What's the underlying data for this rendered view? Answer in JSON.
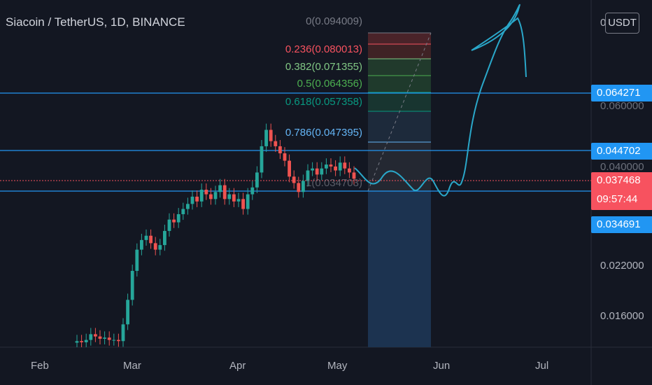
{
  "header": {
    "symbol_title": "Siacoin / TetherUS, 1D, BINANCE"
  },
  "price_axis": {
    "currency_button": "USDT",
    "top_tick": "0",
    "ticks": [
      "0.022000",
      "0.016000"
    ],
    "partially_hidden_ticks": [
      "0.060000",
      "0.040000"
    ]
  },
  "time_axis": {
    "labels": [
      "Feb",
      "Mar",
      "Apr",
      "May",
      "Jun",
      "Jul"
    ]
  },
  "horizontal_levels": [
    {
      "value": "0.064271",
      "color": "#2196f3"
    },
    {
      "value": "0.044702",
      "color": "#2196f3"
    },
    {
      "value": "0.034691",
      "color": "#2196f3"
    }
  ],
  "last_price": {
    "value": "0.037468",
    "countdown": "09:57:44",
    "color": "#f7525f"
  },
  "fibonacci": [
    {
      "label": "0(0.094009)",
      "color": "#787b86"
    },
    {
      "label": "0.236(0.080013)",
      "color": "#f7525f"
    },
    {
      "label": "0.382(0.071355)",
      "color": "#81c784"
    },
    {
      "label": "0.5(0.064356)",
      "color": "#4caf50"
    },
    {
      "label": "0.618(0.057358)",
      "color": "#089981"
    },
    {
      "label": "0.786(0.047395)",
      "color": "#64b5f6"
    },
    {
      "label": "1(0.034703)",
      "color": "#787b86"
    }
  ],
  "colors": {
    "background": "#131722",
    "up_candle": "#26a69a",
    "down_candle": "#ef5350",
    "drawing": "#2aa7c9",
    "level_line": "#2196f3"
  },
  "chart_data": {
    "type": "candlestick",
    "symbol": "Siacoin / TetherUS",
    "interval": "1D",
    "exchange": "BINANCE",
    "x_axis_months": [
      "Feb",
      "Mar",
      "Apr",
      "May",
      "Jun",
      "Jul"
    ],
    "candles_close_approx": [
      0.0135,
      0.0134,
      0.0136,
      0.0141,
      0.0139,
      0.0137,
      0.0138,
      0.0136,
      0.0136,
      0.0135,
      0.015,
      0.0175,
      0.021,
      0.024,
      0.0255,
      0.0262,
      0.025,
      0.024,
      0.0247,
      0.027,
      0.029,
      0.0285,
      0.03,
      0.031,
      0.032,
      0.0335,
      0.0325,
      0.035,
      0.034,
      0.033,
      0.0345,
      0.036,
      0.033,
      0.034,
      0.0325,
      0.033,
      0.031,
      0.034,
      0.0355,
      0.039,
      0.046,
      0.051,
      0.0475,
      0.046,
      0.044,
      0.042,
      0.038,
      0.0365,
      0.0345,
      0.037,
      0.0395,
      0.04,
      0.0385,
      0.04,
      0.041,
      0.0405,
      0.0395,
      0.0415,
      0.04,
      0.039,
      0.0375
    ],
    "fib_levels": {
      "0": 0.094009,
      "0.236": 0.080013,
      "0.382": 0.071355,
      "0.5": 0.064356,
      "0.618": 0.057358,
      "0.786": 0.047395,
      "1": 0.034703
    },
    "horizontal_levels": [
      0.064271,
      0.044702,
      0.034691
    ],
    "last_price": 0.037468,
    "price_ticks": [
      0.016,
      0.022
    ]
  }
}
